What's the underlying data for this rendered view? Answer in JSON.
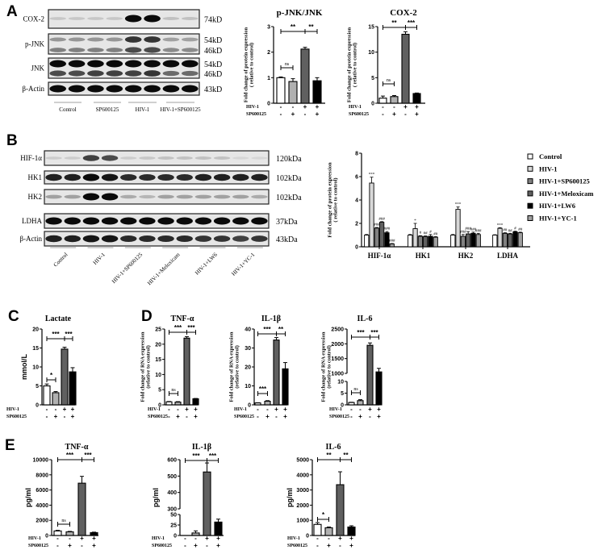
{
  "panels": {
    "A": "A",
    "B": "B",
    "C": "C",
    "D": "D",
    "E": "E"
  },
  "conditions": {
    "row_labels": [
      "HIV-1",
      "SP600125"
    ],
    "HIV-1": [
      "-",
      "-",
      "+",
      "+"
    ],
    "SP600125": [
      "-",
      "+",
      "-",
      "+"
    ]
  },
  "blot_A": {
    "proteins": [
      "COX-2",
      "p-JNK",
      "JNK",
      "β-Actin"
    ],
    "sizes": [
      [
        "74kD"
      ],
      [
        "54kD",
        "46kD"
      ],
      [
        "54kD",
        "46kD"
      ],
      [
        "43kD"
      ]
    ],
    "groups": [
      "Control",
      "SP600125",
      "HIV-1",
      "HIV-1+SP600125"
    ]
  },
  "blot_B": {
    "proteins": [
      "HIF-1α",
      "HK1",
      "HK2",
      "LDHA",
      "β-Actin"
    ],
    "sizes": [
      "120kDa",
      "102kDa",
      "102kDa",
      "37kDa",
      "43kDa"
    ],
    "groups": [
      "Control",
      "HIV-1",
      "HIV-1+SP600125",
      "HIV-1+Meloxicam",
      "HIV-1+LW6",
      "HIV-1+YC-1"
    ]
  },
  "colors": {
    "four_group": [
      "#ffffff",
      "#b0b0b0",
      "#606060",
      "#000000"
    ],
    "six_group": [
      "#ffffff",
      "#d8d8d8",
      "#808080",
      "#606060",
      "#000000",
      "#a0a0a0"
    ]
  },
  "chart_data": [
    {
      "type": "bar",
      "panel": "A",
      "title": "p-JNK/JNK",
      "ylabel": [
        "Fold change of protein  expression",
        "(  relative to control)"
      ],
      "ylim": [
        0,
        3
      ],
      "yticks": [
        "0",
        "1",
        "2",
        "3"
      ],
      "ytick_values": [
        0,
        1,
        2,
        3
      ],
      "values": [
        1.0,
        0.85,
        2.12,
        0.88
      ],
      "errors": [
        0.03,
        0.11,
        0.07,
        0.12
      ],
      "sig": [
        {
          "bars": [
            0,
            2
          ],
          "label": "**"
        },
        {
          "bars": [
            2,
            3
          ],
          "label": "**"
        },
        {
          "bars": [
            0,
            1
          ],
          "label": "ns"
        }
      ]
    },
    {
      "type": "bar",
      "panel": "A",
      "title": "COX-2",
      "ylabel": [
        "Fold change of protein  expression",
        "(  relative to control)"
      ],
      "ylim": [
        0,
        15
      ],
      "yticks": [
        "0",
        "5",
        "10",
        "15"
      ],
      "ytick_values": [
        0,
        5,
        10,
        15
      ],
      "values": [
        1.0,
        1.3,
        13.5,
        1.9
      ],
      "errors": [
        0.4,
        0.2,
        0.5,
        0.1
      ],
      "sig": [
        {
          "bars": [
            0,
            2
          ],
          "label": "**"
        },
        {
          "bars": [
            2,
            3
          ],
          "label": "***"
        },
        {
          "bars": [
            0,
            1
          ],
          "label": "ns"
        }
      ]
    },
    {
      "type": "bar",
      "panel": "B",
      "ylabel": [
        "Fold change of protein  expression",
        "( relative to control)"
      ],
      "ylim": [
        0,
        8
      ],
      "yticks": [
        "0",
        "2",
        "4",
        "6",
        "8"
      ],
      "ytick_values": [
        0,
        2,
        4,
        6,
        8
      ],
      "categories": [
        "HIF-1α",
        "HK1",
        "HK2",
        "LDHA"
      ],
      "legend": "right",
      "series": [
        {
          "name": "Control",
          "values": [
            1.0,
            1.0,
            1.0,
            1.0
          ],
          "errors": [
            0.05,
            0.05,
            0.05,
            0.03
          ],
          "labels": [
            "",
            "",
            "",
            ""
          ]
        },
        {
          "name": "HIV-1",
          "values": [
            5.45,
            1.55,
            3.2,
            1.58
          ],
          "errors": [
            0.5,
            0.45,
            0.2,
            0.05
          ],
          "labels": [
            "***",
            "*",
            "***",
            "***"
          ]
        },
        {
          "name": "HIV-1+SP600125",
          "values": [
            1.6,
            0.9,
            0.9,
            1.15
          ],
          "errors": [
            0.05,
            0.05,
            0.15,
            0.05
          ],
          "labels": [
            "###",
            "#",
            "###",
            "##"
          ]
        },
        {
          "name": "HIV-1+Meloxicam",
          "values": [
            2.1,
            0.88,
            1.1,
            1.1
          ],
          "errors": [
            0.05,
            0.05,
            0.2,
            0.05
          ],
          "labels": [
            "###",
            "##",
            "###",
            "##"
          ]
        },
        {
          "name": "HIV-1+LW6",
          "values": [
            1.2,
            0.9,
            1.15,
            1.28
          ],
          "errors": [
            0.1,
            0.15,
            0.1,
            0.05
          ],
          "labels": [
            "###",
            "#",
            "###",
            "#"
          ]
        },
        {
          "name": "HIV-1+YC-1",
          "values": [
            0.25,
            0.82,
            1.05,
            1.2
          ],
          "errors": [
            0.03,
            0.05,
            0.1,
            0.05
          ],
          "labels": [
            "###",
            "##",
            "###",
            "##"
          ]
        }
      ]
    },
    {
      "type": "bar",
      "panel": "C",
      "title": "Lactate",
      "ylabel": [
        "mmol/L"
      ],
      "ylim": [
        0,
        20
      ],
      "yticks": [
        "0",
        "5",
        "10",
        "15",
        "20"
      ],
      "ytick_values": [
        0,
        5,
        10,
        15,
        20
      ],
      "values": [
        5.0,
        3.2,
        14.7,
        8.7
      ],
      "errors": [
        0.5,
        0.3,
        0.5,
        1.1
      ],
      "sig": [
        {
          "bars": [
            0,
            2
          ],
          "label": "***"
        },
        {
          "bars": [
            2,
            3
          ],
          "label": "***"
        },
        {
          "bars": [
            0,
            1
          ],
          "label": "*"
        }
      ]
    },
    {
      "type": "bar",
      "panel": "D",
      "title": "TNF-α",
      "ylabel": [
        "Fold change of RNA expression",
        "(relative to control)"
      ],
      "ylim": [
        0,
        25
      ],
      "yticks": [
        "0",
        "5",
        "10",
        "15",
        "20",
        "25"
      ],
      "ytick_values": [
        0,
        5,
        10,
        15,
        20,
        25
      ],
      "values": [
        1.0,
        0.9,
        22.0,
        2.0
      ],
      "errors": [
        0.1,
        0.15,
        0.5,
        0.1
      ],
      "sig": [
        {
          "bars": [
            0,
            2
          ],
          "label": "***"
        },
        {
          "bars": [
            2,
            3
          ],
          "label": "***"
        },
        {
          "bars": [
            0,
            1
          ],
          "label": "ns"
        }
      ]
    },
    {
      "type": "bar",
      "panel": "D",
      "title": "IL-1β",
      "ylabel": [
        "Fold change of RNA expression",
        "(relative to control)"
      ],
      "ylim": [
        0,
        40
      ],
      "yticks": [
        "0",
        "10",
        "20",
        "30",
        "40"
      ],
      "ytick_values": [
        0,
        10,
        20,
        30,
        40
      ],
      "values": [
        1.0,
        1.9,
        34.2,
        19.0
      ],
      "errors": [
        0.1,
        0.3,
        1.3,
        3.3
      ],
      "sig": [
        {
          "bars": [
            0,
            2
          ],
          "label": "***"
        },
        {
          "bars": [
            2,
            3
          ],
          "label": "**"
        },
        {
          "bars": [
            0,
            1
          ],
          "label": "***"
        }
      ]
    },
    {
      "type": "bar",
      "panel": "D",
      "title": "IL-6",
      "ylabel": [
        "Fold change of RNA expression",
        "(relative to control)"
      ],
      "ylim": [
        0,
        2500
      ],
      "axis_break": [
        10,
        1000
      ],
      "yticks": [
        "0",
        "5",
        "10",
        "1000",
        "1500",
        "2000",
        "2500"
      ],
      "ytick_values": [
        0,
        5,
        10,
        1000,
        1500,
        2000,
        2500
      ],
      "values": [
        1.0,
        1.8,
        1950,
        1050
      ],
      "errors": [
        0.1,
        0.4,
        80,
        120
      ],
      "sig": [
        {
          "bars": [
            0,
            2
          ],
          "label": "***"
        },
        {
          "bars": [
            2,
            3
          ],
          "label": "***"
        },
        {
          "bars": [
            0,
            1
          ],
          "label": "ns"
        }
      ]
    },
    {
      "type": "bar",
      "panel": "E",
      "title": "TNF-α",
      "ylabel": [
        "pg/ml"
      ],
      "ylim": [
        0,
        10000
      ],
      "yticks": [
        "0",
        "2000",
        "4000",
        "6000",
        "8000",
        "10000"
      ],
      "ytick_values": [
        0,
        2000,
        4000,
        6000,
        8000,
        10000
      ],
      "values": [
        600,
        480,
        6900,
        380
      ],
      "errors": [
        80,
        60,
        900,
        60
      ],
      "sig": [
        {
          "bars": [
            0,
            2
          ],
          "label": "***"
        },
        {
          "bars": [
            2,
            3
          ],
          "label": "***"
        },
        {
          "bars": [
            0,
            1
          ],
          "label": "ns"
        }
      ]
    },
    {
      "type": "bar",
      "panel": "E",
      "title": "IL-1β",
      "ylabel": [
        "pg/ml"
      ],
      "ylim": [
        0,
        600
      ],
      "axis_break": [
        50,
        300
      ],
      "yticks": [
        "0",
        "25",
        "50",
        "300",
        "400",
        "500",
        "600"
      ],
      "ytick_values": [
        0,
        25,
        50,
        300,
        400,
        500,
        600
      ],
      "values": [
        0,
        6,
        525,
        32
      ],
      "errors": [
        0,
        5,
        55,
        7
      ],
      "sig": [
        {
          "bars": [
            0,
            2
          ],
          "label": "***"
        },
        {
          "bars": [
            2,
            3
          ],
          "label": "***"
        }
      ]
    },
    {
      "type": "bar",
      "panel": "E",
      "title": "IL-6",
      "ylabel": [
        "pg/ml"
      ],
      "ylim": [
        0,
        5000
      ],
      "yticks": [
        "0",
        "1000",
        "2000",
        "3000",
        "4000",
        "5000"
      ],
      "ytick_values": [
        0,
        1000,
        2000,
        3000,
        4000,
        5000
      ],
      "values": [
        730,
        510,
        3350,
        560
      ],
      "errors": [
        120,
        50,
        850,
        80
      ],
      "sig": [
        {
          "bars": [
            0,
            2
          ],
          "label": "**"
        },
        {
          "bars": [
            2,
            3
          ],
          "label": "**"
        },
        {
          "bars": [
            0,
            1
          ],
          "label": "*"
        }
      ]
    }
  ]
}
